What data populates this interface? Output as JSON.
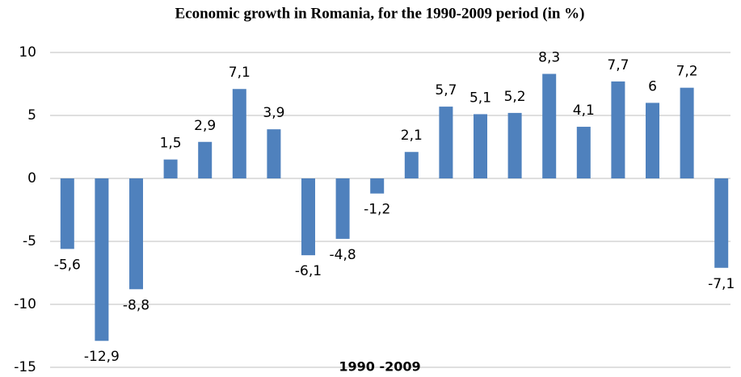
{
  "chart_data": {
    "type": "bar",
    "title": "Economic growth in Romania, for the 1990-2009 period (in %)",
    "x_label": "1990 -2009",
    "categories": [
      null,
      null,
      null,
      null,
      null,
      null,
      null,
      null,
      null,
      null,
      null,
      null,
      null,
      null,
      null,
      null,
      null,
      null,
      null,
      null
    ],
    "values": [
      -5.6,
      -12.9,
      -8.8,
      1.5,
      2.9,
      7.1,
      3.9,
      -6.1,
      -4.8,
      -1.2,
      2.1,
      5.7,
      5.1,
      5.2,
      8.3,
      4.1,
      7.7,
      6,
      7.2,
      -7.1
    ],
    "value_labels": [
      "-5,6",
      "-12,9",
      "-8,8",
      "1,5",
      "2,9",
      "7,1",
      "3,9",
      "-6,1",
      "-4,8",
      "-1,2",
      "2,1",
      "5,7",
      "5,1",
      "5,2",
      "8,3",
      "4,1",
      "7,7",
      "6",
      "7,2",
      "-7,1"
    ],
    "color": "#4f81bd",
    "ylim": [
      -15,
      10
    ],
    "yticks": [
      10,
      5,
      0,
      -5,
      -10,
      -15
    ],
    "grid": true
  }
}
